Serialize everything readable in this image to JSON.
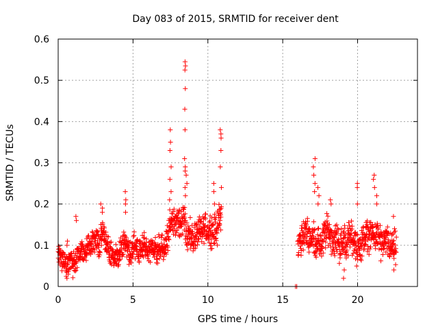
{
  "chart_data": {
    "type": "scatter",
    "title": "Day 083 of 2015, SRMTID for receiver dent",
    "xlabel": "GPS time / hours",
    "ylabel": "SRMTID / TECUs",
    "xlim": [
      0,
      24
    ],
    "ylim": [
      0,
      0.6
    ],
    "xticks": [
      0,
      5,
      10,
      15,
      20
    ],
    "yticks": [
      0,
      0.1,
      0.2,
      0.3,
      0.4,
      0.5,
      0.6
    ],
    "grid": true,
    "marker": "plus",
    "color": "#ff0000",
    "segments": [
      {
        "x_start": 0.0,
        "x_end": 7.2,
        "trend": [
          [
            0,
            0.08
          ],
          [
            0.5,
            0.06
          ],
          [
            1,
            0.05
          ],
          [
            1.5,
            0.09
          ],
          [
            2,
            0.1
          ],
          [
            2.5,
            0.11
          ],
          [
            3,
            0.12
          ],
          [
            3.5,
            0.08
          ],
          [
            4,
            0.07
          ],
          [
            4.5,
            0.09
          ],
          [
            5,
            0.09
          ],
          [
            5.5,
            0.09
          ],
          [
            6,
            0.08
          ],
          [
            6.5,
            0.09
          ],
          [
            7,
            0.09
          ]
        ],
        "spread": 0.035
      },
      {
        "x_start": 7.2,
        "x_end": 10.9,
        "trend": [
          [
            7.2,
            0.1
          ],
          [
            7.6,
            0.17
          ],
          [
            8,
            0.14
          ],
          [
            8.4,
            0.16
          ],
          [
            8.8,
            0.12
          ],
          [
            9.2,
            0.12
          ],
          [
            9.6,
            0.13
          ],
          [
            10,
            0.14
          ],
          [
            10.4,
            0.14
          ],
          [
            10.9,
            0.17
          ]
        ],
        "spread": 0.045
      },
      {
        "x_start": 16.0,
        "x_end": 22.6,
        "trend": [
          [
            16,
            0.1
          ],
          [
            16.5,
            0.13
          ],
          [
            17,
            0.12
          ],
          [
            17.5,
            0.1
          ],
          [
            18,
            0.14
          ],
          [
            18.5,
            0.11
          ],
          [
            19,
            0.1
          ],
          [
            19.5,
            0.12
          ],
          [
            20,
            0.09
          ],
          [
            20.5,
            0.12
          ],
          [
            21,
            0.13
          ],
          [
            21.5,
            0.11
          ],
          [
            22,
            0.1
          ],
          [
            22.6,
            0.08
          ]
        ],
        "spread": 0.045
      }
    ],
    "spikes": [
      {
        "x": 0.6,
        "values": [
          0.11,
          0.02,
          0.1
        ]
      },
      {
        "x": 1.2,
        "values": [
          0.17,
          0.16
        ]
      },
      {
        "x": 2.9,
        "values": [
          0.2,
          0.19,
          0.18
        ]
      },
      {
        "x": 4.5,
        "values": [
          0.23,
          0.21,
          0.2,
          0.18
        ]
      },
      {
        "x": 7.5,
        "values": [
          0.38,
          0.35,
          0.33,
          0.29,
          0.26,
          0.23,
          0.21
        ]
      },
      {
        "x": 8.45,
        "values": [
          0.545,
          0.535,
          0.525,
          0.48,
          0.43,
          0.38,
          0.31,
          0.28,
          0.24
        ]
      },
      {
        "x": 8.55,
        "values": [
          0.29,
          0.27,
          0.25,
          0.22
        ]
      },
      {
        "x": 10.4,
        "values": [
          0.25,
          0.23,
          0.2
        ]
      },
      {
        "x": 10.85,
        "values": [
          0.38,
          0.37,
          0.36,
          0.33,
          0.29,
          0.24
        ]
      },
      {
        "x": 15.9,
        "values": [
          0.0,
          0.0,
          0.0
        ]
      },
      {
        "x": 17.1,
        "values": [
          0.31,
          0.29,
          0.27,
          0.25,
          0.23
        ]
      },
      {
        "x": 17.4,
        "values": [
          0.24,
          0.22,
          0.2
        ]
      },
      {
        "x": 18.2,
        "values": [
          0.21,
          0.2
        ]
      },
      {
        "x": 19.1,
        "values": [
          0.04,
          0.02
        ]
      },
      {
        "x": 20.0,
        "values": [
          0.25,
          0.24,
          0.2
        ]
      },
      {
        "x": 21.1,
        "values": [
          0.27,
          0.26,
          0.24
        ]
      },
      {
        "x": 21.3,
        "values": [
          0.22,
          0.2
        ]
      },
      {
        "x": 22.4,
        "values": [
          0.17,
          0.04
        ]
      }
    ]
  }
}
